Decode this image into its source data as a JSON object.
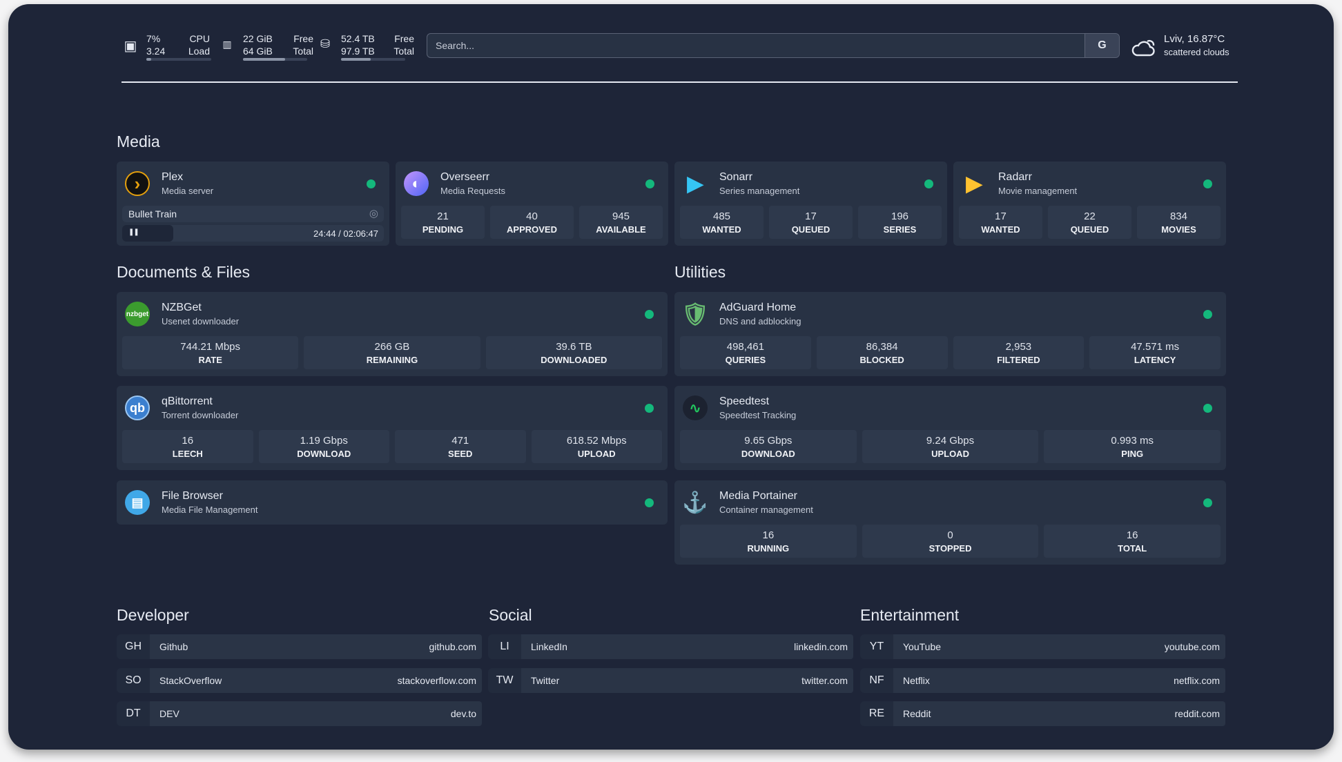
{
  "topbar": {
    "cpu": {
      "icon": "cpu-icon",
      "value1": "7%",
      "value2": "3.24",
      "label1": "CPU",
      "label2": "Load",
      "percent": 7
    },
    "memory": {
      "icon": "memory-icon",
      "value1": "22 GiB",
      "value2": "64 GiB",
      "label1": "Free",
      "label2": "Total",
      "percent": 66
    },
    "disk": {
      "icon": "disk-icon",
      "value1": "52.4 TB",
      "value2": "97.9 TB",
      "label1": "Free",
      "label2": "Total",
      "percent": 46
    },
    "search": {
      "placeholder": "Search...",
      "button": "G"
    },
    "weather": {
      "icon": "cloud-icon",
      "location_temp": "Lviv, 16.87°C",
      "condition": "scattered clouds"
    }
  },
  "sections": {
    "media": "Media",
    "documents": "Documents & Files",
    "utilities": "Utilities",
    "developer": "Developer",
    "social": "Social",
    "entertainment": "Entertainment"
  },
  "status_color": "#14b87c",
  "media": [
    {
      "name": "Plex",
      "desc": "Media server",
      "icon": "plex-icon",
      "now_playing": {
        "title": "Bullet Train",
        "time": "24:44 / 02:06:47",
        "progress_percent": 19.5,
        "state": "paused"
      }
    },
    {
      "name": "Overseerr",
      "desc": "Media Requests",
      "icon": "overseerr-icon",
      "stats": [
        {
          "v": "21",
          "l": "PENDING"
        },
        {
          "v": "40",
          "l": "APPROVED"
        },
        {
          "v": "945",
          "l": "AVAILABLE"
        }
      ]
    },
    {
      "name": "Sonarr",
      "desc": "Series management",
      "icon": "sonarr-icon",
      "stats": [
        {
          "v": "485",
          "l": "WANTED"
        },
        {
          "v": "17",
          "l": "QUEUED"
        },
        {
          "v": "196",
          "l": "SERIES"
        }
      ]
    },
    {
      "name": "Radarr",
      "desc": "Movie management",
      "icon": "radarr-icon",
      "stats": [
        {
          "v": "17",
          "l": "WANTED"
        },
        {
          "v": "22",
          "l": "QUEUED"
        },
        {
          "v": "834",
          "l": "MOVIES"
        }
      ]
    }
  ],
  "documents": [
    {
      "name": "NZBGet",
      "desc": "Usenet downloader",
      "icon": "nzbget-icon",
      "logo_text": "nzbget",
      "stats": [
        {
          "v": "744.21 Mbps",
          "l": "RATE"
        },
        {
          "v": "266 GB",
          "l": "REMAINING"
        },
        {
          "v": "39.6 TB",
          "l": "DOWNLOADED"
        }
      ]
    },
    {
      "name": "qBittorrent",
      "desc": "Torrent downloader",
      "icon": "qbittorrent-icon",
      "logo_text": "qb",
      "stats": [
        {
          "v": "16",
          "l": "LEECH"
        },
        {
          "v": "1.19 Gbps",
          "l": "DOWNLOAD"
        },
        {
          "v": "471",
          "l": "SEED"
        },
        {
          "v": "618.52 Mbps",
          "l": "UPLOAD"
        }
      ]
    },
    {
      "name": "File Browser",
      "desc": "Media File Management",
      "icon": "file-browser-icon"
    }
  ],
  "utilities": [
    {
      "name": "AdGuard Home",
      "desc": "DNS and adblocking",
      "icon": "adguard-icon",
      "stats": [
        {
          "v": "498,461",
          "l": "QUERIES"
        },
        {
          "v": "86,384",
          "l": "BLOCKED"
        },
        {
          "v": "2,953",
          "l": "FILTERED"
        },
        {
          "v": "47.571 ms",
          "l": "LATENCY"
        }
      ]
    },
    {
      "name": "Speedtest",
      "desc": "Speedtest Tracking",
      "icon": "speedtest-icon",
      "stats": [
        {
          "v": "9.65 Gbps",
          "l": "DOWNLOAD"
        },
        {
          "v": "9.24 Gbps",
          "l": "UPLOAD"
        },
        {
          "v": "0.993 ms",
          "l": "PING"
        }
      ]
    },
    {
      "name": "Media Portainer",
      "desc": "Container management",
      "icon": "portainer-icon",
      "stats": [
        {
          "v": "16",
          "l": "RUNNING"
        },
        {
          "v": "0",
          "l": "STOPPED"
        },
        {
          "v": "16",
          "l": "TOTAL"
        }
      ]
    }
  ],
  "links": {
    "developer": [
      {
        "abbr": "GH",
        "name": "Github",
        "url": "github.com"
      },
      {
        "abbr": "SO",
        "name": "StackOverflow",
        "url": "stackoverflow.com"
      },
      {
        "abbr": "DT",
        "name": "DEV",
        "url": "dev.to"
      }
    ],
    "social": [
      {
        "abbr": "LI",
        "name": "LinkedIn",
        "url": "linkedin.com"
      },
      {
        "abbr": "TW",
        "name": "Twitter",
        "url": "twitter.com"
      }
    ],
    "entertainment": [
      {
        "abbr": "YT",
        "name": "YouTube",
        "url": "youtube.com"
      },
      {
        "abbr": "NF",
        "name": "Netflix",
        "url": "netflix.com"
      },
      {
        "abbr": "RE",
        "name": "Reddit",
        "url": "reddit.com"
      }
    ]
  }
}
